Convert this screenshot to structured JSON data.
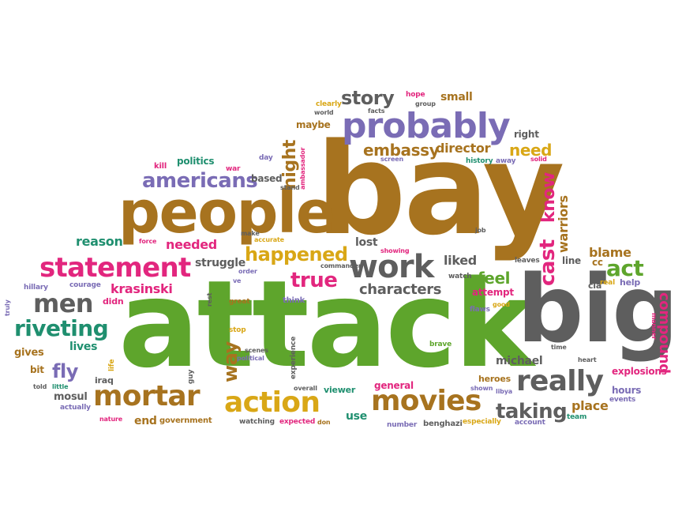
{
  "words": {
    "attack": "attack",
    "bay": "bay",
    "big": "big",
    "people": "people",
    "probably": "probably",
    "statement": "statement",
    "work": "work",
    "really": "really",
    "movies": "movies",
    "mortar": "mortar",
    "action": "action",
    "riveting": "riveting",
    "men": "men",
    "americans": "americans",
    "happened": "happened",
    "story": "story",
    "embassy": "embassy",
    "director": "director",
    "need": "need",
    "taking": "taking",
    "characters": "characters",
    "true": "true",
    "feel": "feel",
    "act": "act",
    "blame": "blame",
    "cast": "cast",
    "know": "know",
    "night": "night",
    "compound": "compound",
    "warriors": "warriors",
    "krasinski": "krasinski",
    "way": "way",
    "fly": "fly",
    "michael": "michael",
    "liked": "liked",
    "needed": "needed",
    "reason": "reason",
    "struggle": "struggle",
    "lost": "lost",
    "small": "small",
    "maybe": "maybe",
    "right": "right",
    "politics": "politics",
    "based": "based",
    "explosions": "explosions",
    "place": "place",
    "hours": "hours",
    "end": "end",
    "government": "government",
    "general": "general",
    "viewer": "viewer",
    "use": "use",
    "gives": "gives",
    "lives": "lives",
    "bit": "bit",
    "mosul": "mosul",
    "iraq": "iraq",
    "attempt": "attempt",
    "heroes": "heroes",
    "line": "line",
    "cc": "cc",
    "cia": "cia",
    "help": "help",
    "real": "real",
    "hillary": "hillary",
    "courage": "courage",
    "didn": "didn",
    "watching": "watching",
    "expected": "expected",
    "don": "don",
    "number": "number",
    "benghazi": "benghazi",
    "especially": "especially",
    "account": "account",
    "team": "team",
    "events": "events",
    "kill": "kill",
    "day": "day",
    "war": "war",
    "stand": "stand",
    "ambassador": "ambassador",
    "history": "history",
    "away": "away",
    "solid": "solid",
    "screen": "screen",
    "clearly": "clearly",
    "world": "world",
    "facts": "facts",
    "hope": "hope",
    "group": "group",
    "job": "job",
    "leaves": "leaves",
    "force": "force",
    "make": "make",
    "accurate": "accurate",
    "showing": "showing",
    "commander": "commander",
    "order": "order",
    "ve": "ve",
    "watch": "watch",
    "great": "great",
    "think": "think",
    "rest": "rest",
    "flaws": "flaws",
    "good": "good",
    "stop": "stop",
    "political": "political",
    "scenes": "scenes",
    "experience": "experience",
    "life": "life",
    "guy": "guy",
    "overall": "overall",
    "shown": "shown",
    "libya": "libya",
    "brave": "brave",
    "time": "time",
    "heart": "heart",
    "manner": "manner",
    "truly": "truly",
    "told": "told",
    "little": "little",
    "actually": "actually",
    "nature": "nature"
  },
  "palette": {
    "green": "#5ea52c",
    "brown": "#a7731f",
    "gray": "#5e5e5e",
    "purple": "#7a6cb5",
    "pink": "#e2267e",
    "teal": "#1f8f6f",
    "gold": "#d9a716"
  }
}
